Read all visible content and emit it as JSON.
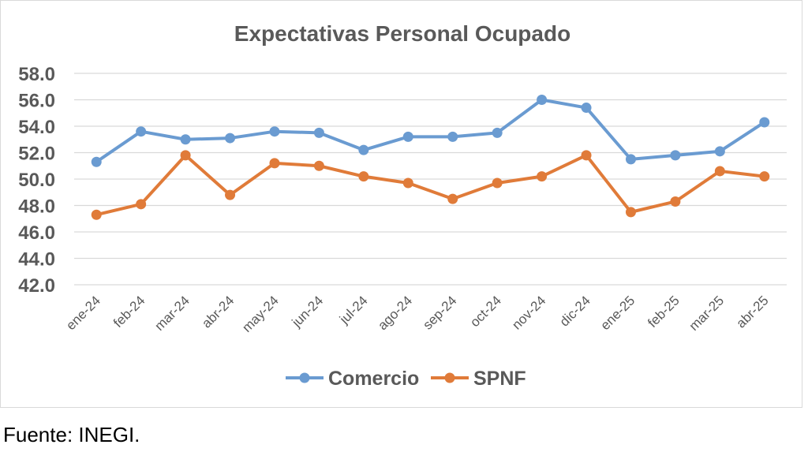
{
  "chart_data": {
    "type": "line",
    "title": "Expectativas Personal Ocupado",
    "xlabel": "",
    "ylabel": "",
    "ylim": [
      42,
      58
    ],
    "yticks": [
      "58.0",
      "56.0",
      "54.0",
      "52.0",
      "50.0",
      "48.0",
      "46.0",
      "44.0",
      "42.0"
    ],
    "ytick_values": [
      58,
      56,
      54,
      52,
      50,
      48,
      46,
      44,
      42
    ],
    "categories": [
      "ene-24",
      "feb-24",
      "mar-24",
      "abr-24",
      "may-24",
      "jun-24",
      "jul-24",
      "ago-24",
      "sep-24",
      "oct-24",
      "nov-24",
      "dic-24",
      "ene-25",
      "feb-25",
      "mar-25",
      "abr-25"
    ],
    "grid": true,
    "legend_position": "bottom",
    "series": [
      {
        "name": "Comercio",
        "color": "#6a9bd1",
        "values": [
          51.3,
          53.6,
          53.0,
          53.1,
          53.6,
          53.5,
          52.2,
          53.2,
          53.2,
          53.5,
          56.0,
          55.4,
          51.5,
          51.8,
          52.1,
          54.3
        ]
      },
      {
        "name": "SPNF",
        "color": "#e07b39",
        "values": [
          47.3,
          48.1,
          51.8,
          48.8,
          51.2,
          51.0,
          50.2,
          49.7,
          48.5,
          49.7,
          50.2,
          51.8,
          47.5,
          48.3,
          50.6,
          50.2
        ]
      }
    ]
  },
  "source": "Fuente: INEGI."
}
